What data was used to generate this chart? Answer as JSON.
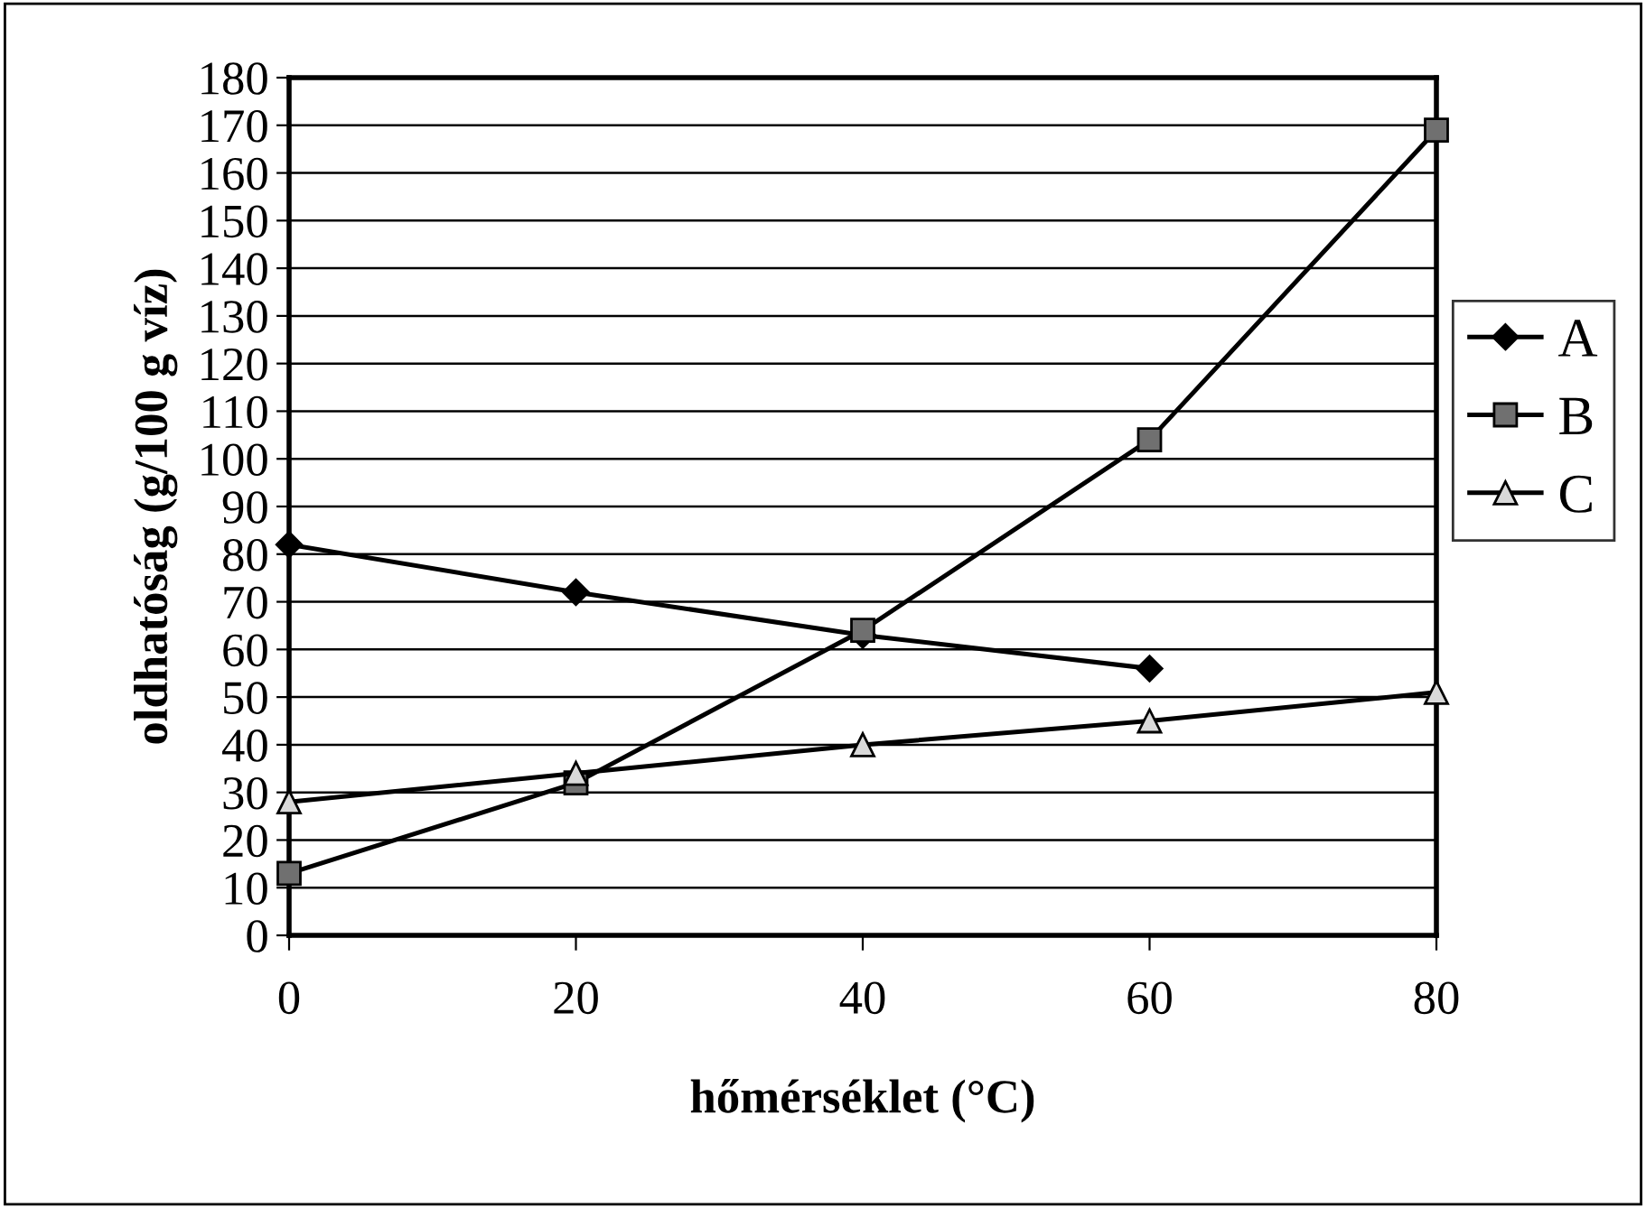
{
  "chart_data": {
    "type": "line",
    "xlabel": "hőmérséklet (°C)",
    "ylabel": "oldhatóság (g/100 g víz)",
    "x": [
      0,
      20,
      40,
      60,
      80
    ],
    "series": [
      {
        "name": "A",
        "color": "#000000",
        "values": [
          82,
          72,
          63,
          56,
          null
        ],
        "marker": "diamond"
      },
      {
        "name": "B",
        "color": "#707070",
        "values": [
          13,
          32,
          64,
          104,
          169
        ],
        "marker": "square"
      },
      {
        "name": "C",
        "color": "#d9d9d9",
        "values": [
          28,
          34,
          40,
          45,
          51
        ],
        "marker": "triangle"
      }
    ],
    "xlim": [
      0,
      80
    ],
    "xticks": [
      0,
      20,
      40,
      60,
      80
    ],
    "ylim": [
      0,
      180
    ],
    "yticks": [
      0,
      10,
      20,
      30,
      40,
      50,
      60,
      70,
      80,
      90,
      100,
      110,
      120,
      130,
      140,
      150,
      160,
      170,
      180
    ],
    "grid": "y",
    "legend": "right",
    "line_style": "solid"
  }
}
